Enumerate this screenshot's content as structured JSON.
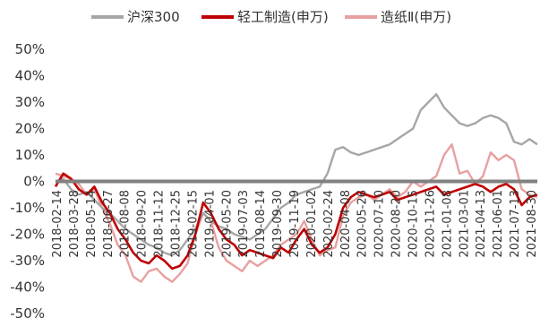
{
  "chart_data": {
    "type": "line",
    "title": "",
    "xlabel": "",
    "ylabel": "",
    "ylim": [
      -50,
      50
    ],
    "y_ticks": [
      50,
      40,
      30,
      20,
      10,
      0,
      -10,
      -20,
      -30,
      -40,
      -50
    ],
    "y_tick_labels": [
      "50%",
      "40%",
      "30%",
      "20%",
      "10%",
      "0%",
      "-10%",
      "-20%",
      "-30%",
      "-40%",
      "-50%"
    ],
    "x_tick_labels": [
      "2018-02-14",
      "2018-03-28",
      "2018-05-14",
      "2018-06-27",
      "2018-08-08",
      "2018-09-20",
      "2018-11-12",
      "2018-12-25",
      "2019-02-15",
      "2019-04-01",
      "2019-05-20",
      "2019-07-03",
      "2019-08-14",
      "2019-09-30",
      "2019-11-19",
      "2020-01-02",
      "2020-02-24",
      "2020-04-08",
      "2020-05-26",
      "2020-07-10",
      "2020-08-20",
      "2020-10-15",
      "2020-11-26",
      "2021-01-08",
      "2021-03-01",
      "2021-04-13",
      "2021-06-01",
      "2021-07-13",
      "2021-08-30"
    ],
    "legend": {
      "placement": "top",
      "entries": [
        "沪深300",
        "轻工制造(申万)",
        "造纸Ⅱ(申万)"
      ]
    },
    "colors": {
      "hs300": "#a6a6a6",
      "light": "#c00000",
      "paper": "#e8a0a0",
      "zero_line": "#808080"
    },
    "series": [
      {
        "name": "沪深300",
        "color": "#a6a6a6",
        "values": [
          0,
          1,
          -3,
          -5,
          -4,
          -7,
          -10,
          -12,
          -15,
          -18,
          -20,
          -22,
          -24,
          -25,
          -27,
          -28,
          -26,
          -22,
          -18,
          -12,
          -15,
          -17,
          -18,
          -20,
          -21,
          -22,
          -20,
          -18,
          -14,
          -10,
          -8,
          -5,
          -4,
          -3,
          -2,
          3,
          12,
          13,
          11,
          10,
          11,
          12,
          13,
          14,
          16,
          18,
          20,
          27,
          30,
          33,
          28,
          25,
          22,
          21,
          22,
          24,
          25,
          24,
          22,
          15,
          14,
          16,
          14
        ]
      },
      {
        "name": "轻工制造(申万)",
        "color": "#c00000",
        "values": [
          -2,
          3,
          1,
          -3,
          -5,
          -2,
          -8,
          -12,
          -18,
          -22,
          -27,
          -30,
          -31,
          -28,
          -30,
          -33,
          -32,
          -28,
          -20,
          -8,
          -12,
          -18,
          -22,
          -24,
          -28,
          -26,
          -27,
          -28,
          -29,
          -25,
          -27,
          -22,
          -18,
          -24,
          -27,
          -25,
          -20,
          -10,
          -6,
          -4,
          -5,
          -6,
          -5,
          -4,
          -7,
          -6,
          -5,
          -4,
          -3,
          -2,
          -5,
          -4,
          -3,
          -2,
          -1,
          -2,
          -4,
          -2,
          -1,
          -3,
          -9,
          -6,
          -5
        ]
      },
      {
        "name": "造纸Ⅱ(申万)",
        "color": "#e8a0a0",
        "values": [
          3,
          2,
          1,
          -1,
          -5,
          -3,
          -10,
          -16,
          -24,
          -28,
          -36,
          -38,
          -34,
          -33,
          -36,
          -38,
          -35,
          -31,
          -20,
          -12,
          -15,
          -25,
          -30,
          -32,
          -34,
          -30,
          -32,
          -30,
          -28,
          -24,
          -22,
          -20,
          -15,
          -22,
          -28,
          -26,
          -25,
          -13,
          -8,
          -6,
          -5,
          -7,
          -5,
          -3,
          -6,
          -4,
          0,
          -2,
          0,
          2,
          10,
          14,
          3,
          4,
          -1,
          2,
          11,
          8,
          10,
          8,
          -3,
          -5,
          -6
        ]
      }
    ]
  }
}
